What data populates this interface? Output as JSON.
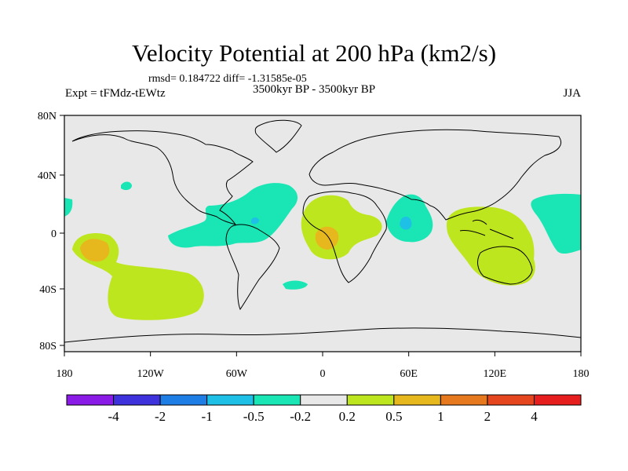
{
  "title": "Velocity Potential at 200 hPa (km2/s)",
  "stats": "rmsd= 0.184722 diff= -1.31585e-05",
  "experiment": "Expt = tFMdz-tEWtz",
  "period": "3500kyr BP - 3500kyr BP",
  "season": "JJA",
  "lat_labels": [
    "80N",
    "40N",
    "0",
    "40S",
    "80S"
  ],
  "lon_labels": [
    "180",
    "120W",
    "60W",
    "0",
    "60E",
    "120E",
    "180"
  ],
  "colorbar": {
    "labels": [
      "-4",
      "-2",
      "-1",
      "-0.5",
      "-0.2",
      "0.2",
      "0.5",
      "1",
      "2",
      "4"
    ],
    "colors": [
      "#8a1ae6",
      "#3e32dc",
      "#1e7ee6",
      "#1ec0e6",
      "#19e6b4",
      "#e8e8e8",
      "#bee61e",
      "#e6b81e",
      "#e6781e",
      "#e6461e",
      "#e61e1e"
    ]
  },
  "map_colors": {
    "background": "#e8e8e8",
    "weak_negative": "#19e6b4",
    "moderate_negative": "#1ec0e6",
    "weak_positive": "#bee61e",
    "moderate_positive": "#e6b81e"
  }
}
